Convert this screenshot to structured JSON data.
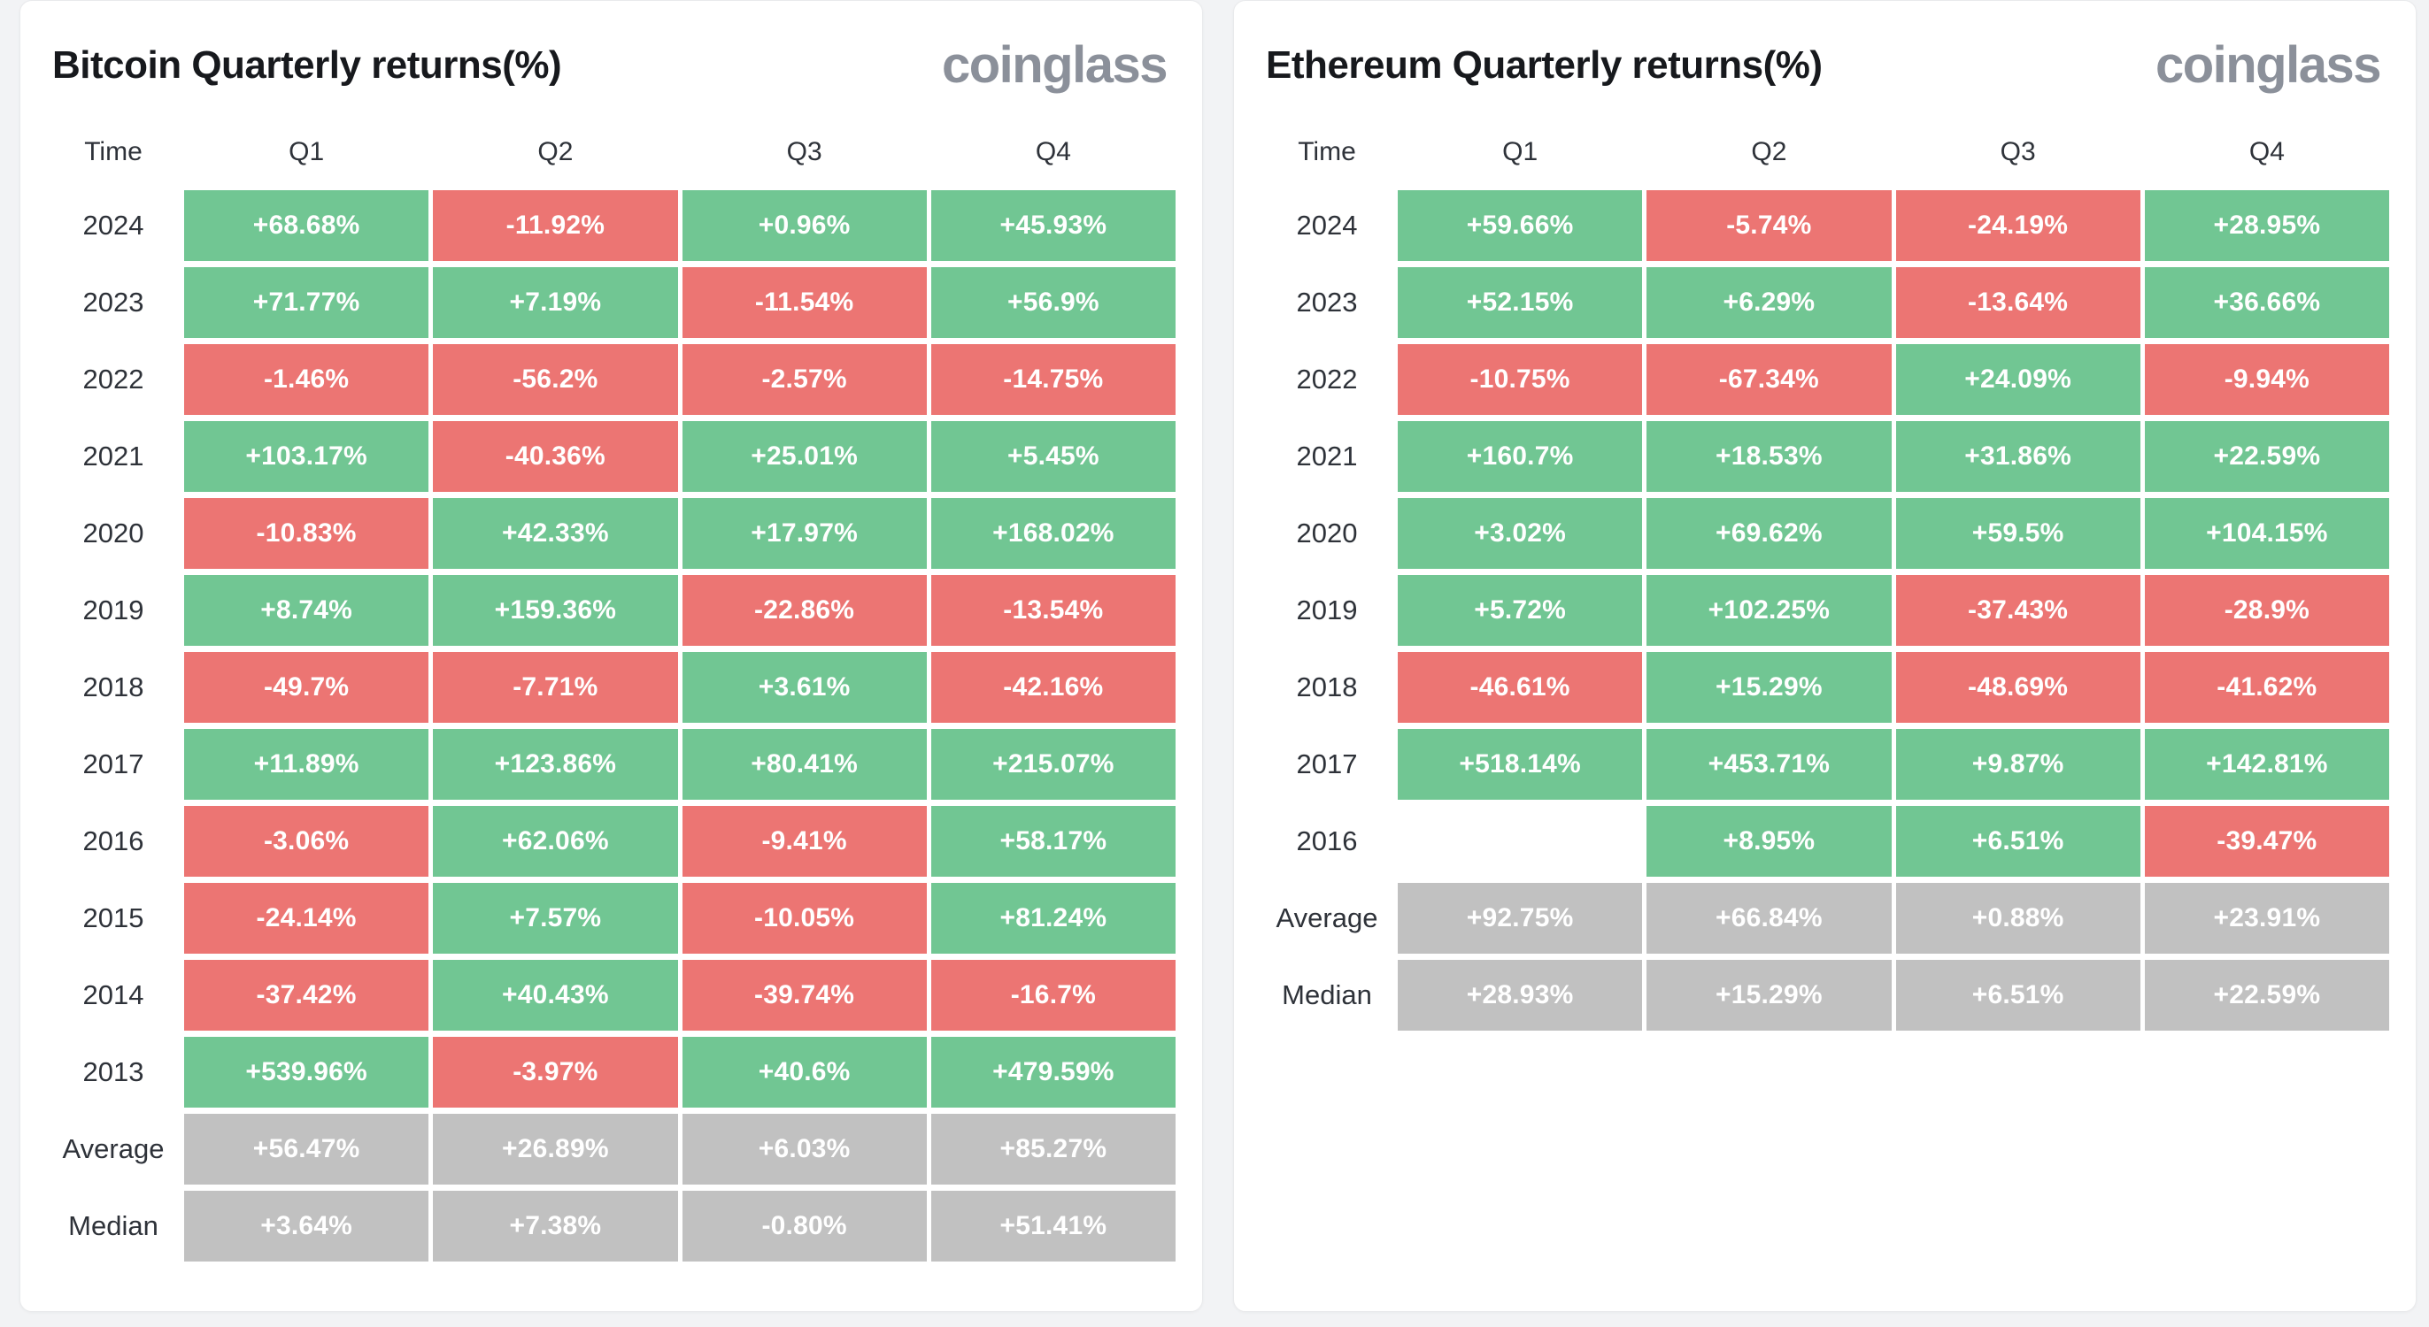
{
  "page_background": "#f2f3f5",
  "colors": {
    "positive": "#71c693",
    "negative": "#ec7573",
    "neutral": "#c1c1c1",
    "card_background": "#ffffff",
    "title_text": "#17191d",
    "label_text": "#2e3239",
    "cell_text": "#ffffff",
    "logo_text": "#8b909a"
  },
  "chart_data": [
    {
      "type": "table",
      "title": "Bitcoin Quarterly returns(%)",
      "brand": "coinglass",
      "columns": [
        "Time",
        "Q1",
        "Q2",
        "Q3",
        "Q4"
      ],
      "rows": [
        {
          "label": "2024",
          "cells": [
            {
              "value": "+68.68%",
              "type": "positive"
            },
            {
              "value": "-11.92%",
              "type": "negative"
            },
            {
              "value": "+0.96%",
              "type": "positive"
            },
            {
              "value": "+45.93%",
              "type": "positive"
            }
          ]
        },
        {
          "label": "2023",
          "cells": [
            {
              "value": "+71.77%",
              "type": "positive"
            },
            {
              "value": "+7.19%",
              "type": "positive"
            },
            {
              "value": "-11.54%",
              "type": "negative"
            },
            {
              "value": "+56.9%",
              "type": "positive"
            }
          ]
        },
        {
          "label": "2022",
          "cells": [
            {
              "value": "-1.46%",
              "type": "negative"
            },
            {
              "value": "-56.2%",
              "type": "negative"
            },
            {
              "value": "-2.57%",
              "type": "negative"
            },
            {
              "value": "-14.75%",
              "type": "negative"
            }
          ]
        },
        {
          "label": "2021",
          "cells": [
            {
              "value": "+103.17%",
              "type": "positive"
            },
            {
              "value": "-40.36%",
              "type": "negative"
            },
            {
              "value": "+25.01%",
              "type": "positive"
            },
            {
              "value": "+5.45%",
              "type": "positive"
            }
          ]
        },
        {
          "label": "2020",
          "cells": [
            {
              "value": "-10.83%",
              "type": "negative"
            },
            {
              "value": "+42.33%",
              "type": "positive"
            },
            {
              "value": "+17.97%",
              "type": "positive"
            },
            {
              "value": "+168.02%",
              "type": "positive"
            }
          ]
        },
        {
          "label": "2019",
          "cells": [
            {
              "value": "+8.74%",
              "type": "positive"
            },
            {
              "value": "+159.36%",
              "type": "positive"
            },
            {
              "value": "-22.86%",
              "type": "negative"
            },
            {
              "value": "-13.54%",
              "type": "negative"
            }
          ]
        },
        {
          "label": "2018",
          "cells": [
            {
              "value": "-49.7%",
              "type": "negative"
            },
            {
              "value": "-7.71%",
              "type": "negative"
            },
            {
              "value": "+3.61%",
              "type": "positive"
            },
            {
              "value": "-42.16%",
              "type": "negative"
            }
          ]
        },
        {
          "label": "2017",
          "cells": [
            {
              "value": "+11.89%",
              "type": "positive"
            },
            {
              "value": "+123.86%",
              "type": "positive"
            },
            {
              "value": "+80.41%",
              "type": "positive"
            },
            {
              "value": "+215.07%",
              "type": "positive"
            }
          ]
        },
        {
          "label": "2016",
          "cells": [
            {
              "value": "-3.06%",
              "type": "negative"
            },
            {
              "value": "+62.06%",
              "type": "positive"
            },
            {
              "value": "-9.41%",
              "type": "negative"
            },
            {
              "value": "+58.17%",
              "type": "positive"
            }
          ]
        },
        {
          "label": "2015",
          "cells": [
            {
              "value": "-24.14%",
              "type": "negative"
            },
            {
              "value": "+7.57%",
              "type": "positive"
            },
            {
              "value": "-10.05%",
              "type": "negative"
            },
            {
              "value": "+81.24%",
              "type": "positive"
            }
          ]
        },
        {
          "label": "2014",
          "cells": [
            {
              "value": "-37.42%",
              "type": "negative"
            },
            {
              "value": "+40.43%",
              "type": "positive"
            },
            {
              "value": "-39.74%",
              "type": "negative"
            },
            {
              "value": "-16.7%",
              "type": "negative"
            }
          ]
        },
        {
          "label": "2013",
          "cells": [
            {
              "value": "+539.96%",
              "type": "positive"
            },
            {
              "value": "-3.97%",
              "type": "negative"
            },
            {
              "value": "+40.6%",
              "type": "positive"
            },
            {
              "value": "+479.59%",
              "type": "positive"
            }
          ]
        },
        {
          "label": "Average",
          "cells": [
            {
              "value": "+56.47%",
              "type": "neutral"
            },
            {
              "value": "+26.89%",
              "type": "neutral"
            },
            {
              "value": "+6.03%",
              "type": "neutral"
            },
            {
              "value": "+85.27%",
              "type": "neutral"
            }
          ]
        },
        {
          "label": "Median",
          "cells": [
            {
              "value": "+3.64%",
              "type": "neutral"
            },
            {
              "value": "+7.38%",
              "type": "neutral"
            },
            {
              "value": "-0.80%",
              "type": "neutral"
            },
            {
              "value": "+51.41%",
              "type": "neutral"
            }
          ]
        }
      ]
    },
    {
      "type": "table",
      "title": "Ethereum Quarterly returns(%)",
      "brand": "coinglass",
      "columns": [
        "Time",
        "Q1",
        "Q2",
        "Q3",
        "Q4"
      ],
      "rows": [
        {
          "label": "2024",
          "cells": [
            {
              "value": "+59.66%",
              "type": "positive"
            },
            {
              "value": "-5.74%",
              "type": "negative"
            },
            {
              "value": "-24.19%",
              "type": "negative"
            },
            {
              "value": "+28.95%",
              "type": "positive"
            }
          ]
        },
        {
          "label": "2023",
          "cells": [
            {
              "value": "+52.15%",
              "type": "positive"
            },
            {
              "value": "+6.29%",
              "type": "positive"
            },
            {
              "value": "-13.64%",
              "type": "negative"
            },
            {
              "value": "+36.66%",
              "type": "positive"
            }
          ]
        },
        {
          "label": "2022",
          "cells": [
            {
              "value": "-10.75%",
              "type": "negative"
            },
            {
              "value": "-67.34%",
              "type": "negative"
            },
            {
              "value": "+24.09%",
              "type": "positive"
            },
            {
              "value": "-9.94%",
              "type": "negative"
            }
          ]
        },
        {
          "label": "2021",
          "cells": [
            {
              "value": "+160.7%",
              "type": "positive"
            },
            {
              "value": "+18.53%",
              "type": "positive"
            },
            {
              "value": "+31.86%",
              "type": "positive"
            },
            {
              "value": "+22.59%",
              "type": "positive"
            }
          ]
        },
        {
          "label": "2020",
          "cells": [
            {
              "value": "+3.02%",
              "type": "positive"
            },
            {
              "value": "+69.62%",
              "type": "positive"
            },
            {
              "value": "+59.5%",
              "type": "positive"
            },
            {
              "value": "+104.15%",
              "type": "positive"
            }
          ]
        },
        {
          "label": "2019",
          "cells": [
            {
              "value": "+5.72%",
              "type": "positive"
            },
            {
              "value": "+102.25%",
              "type": "positive"
            },
            {
              "value": "-37.43%",
              "type": "negative"
            },
            {
              "value": "-28.9%",
              "type": "negative"
            }
          ]
        },
        {
          "label": "2018",
          "cells": [
            {
              "value": "-46.61%",
              "type": "negative"
            },
            {
              "value": "+15.29%",
              "type": "positive"
            },
            {
              "value": "-48.69%",
              "type": "negative"
            },
            {
              "value": "-41.62%",
              "type": "negative"
            }
          ]
        },
        {
          "label": "2017",
          "cells": [
            {
              "value": "+518.14%",
              "type": "positive"
            },
            {
              "value": "+453.71%",
              "type": "positive"
            },
            {
              "value": "+9.87%",
              "type": "positive"
            },
            {
              "value": "+142.81%",
              "type": "positive"
            }
          ]
        },
        {
          "label": "2016",
          "cells": [
            {
              "value": "",
              "type": "empty"
            },
            {
              "value": "+8.95%",
              "type": "positive"
            },
            {
              "value": "+6.51%",
              "type": "positive"
            },
            {
              "value": "-39.47%",
              "type": "negative"
            }
          ]
        },
        {
          "label": "Average",
          "cells": [
            {
              "value": "+92.75%",
              "type": "neutral"
            },
            {
              "value": "+66.84%",
              "type": "neutral"
            },
            {
              "value": "+0.88%",
              "type": "neutral"
            },
            {
              "value": "+23.91%",
              "type": "neutral"
            }
          ]
        },
        {
          "label": "Median",
          "cells": [
            {
              "value": "+28.93%",
              "type": "neutral"
            },
            {
              "value": "+15.29%",
              "type": "neutral"
            },
            {
              "value": "+6.51%",
              "type": "neutral"
            },
            {
              "value": "+22.59%",
              "type": "neutral"
            }
          ]
        }
      ]
    }
  ]
}
